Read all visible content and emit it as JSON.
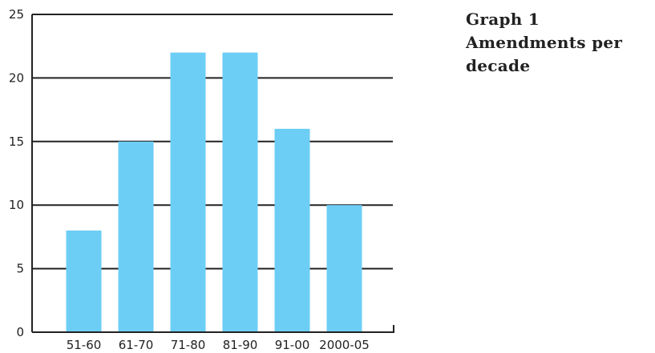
{
  "caption": {
    "graph_label": "Graph 1",
    "title_line1": "Amendments per",
    "title_line2": "decade"
  },
  "chart_data": {
    "type": "bar",
    "title": "Graph 1 Amendments per decade",
    "xlabel": "",
    "ylabel": "",
    "categories": [
      "51-60",
      "61-70",
      "71-80",
      "81-90",
      "91-00",
      "2000-05"
    ],
    "values": [
      8,
      15,
      22,
      22,
      16,
      10
    ],
    "ylim": [
      0,
      25
    ],
    "yticks": [
      "0",
      "5",
      "10",
      "15",
      "20",
      "25"
    ],
    "grid": true,
    "bar_color": "#6dcef5",
    "grid_color": "#222222"
  }
}
